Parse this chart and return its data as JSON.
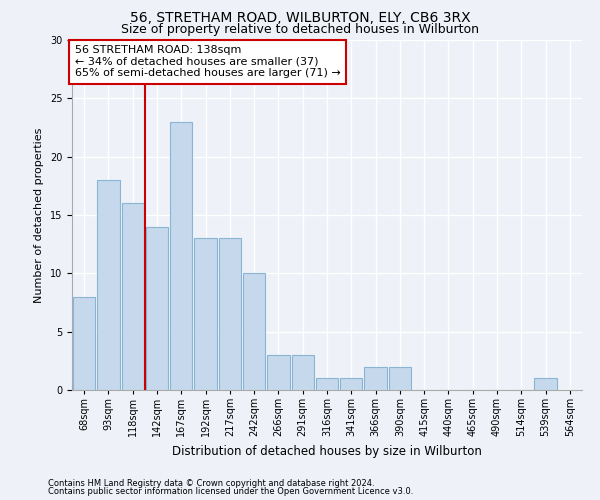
{
  "title1": "56, STRETHAM ROAD, WILBURTON, ELY, CB6 3RX",
  "title2": "Size of property relative to detached houses in Wilburton",
  "xlabel": "Distribution of detached houses by size in Wilburton",
  "ylabel": "Number of detached properties",
  "footer1": "Contains HM Land Registry data © Crown copyright and database right 2024.",
  "footer2": "Contains public sector information licensed under the Open Government Licence v3.0.",
  "annotation_line1": "56 STRETHAM ROAD: 138sqm",
  "annotation_line2": "← 34% of detached houses are smaller (37)",
  "annotation_line3": "65% of semi-detached houses are larger (71) →",
  "bar_values": [
    8,
    18,
    16,
    14,
    23,
    13,
    13,
    10,
    3,
    3,
    1,
    1,
    2,
    2,
    0,
    0,
    0,
    0,
    0,
    1
  ],
  "categories": [
    "68sqm",
    "93sqm",
    "118sqm",
    "142sqm",
    "167sqm",
    "192sqm",
    "217sqm",
    "242sqm",
    "266sqm",
    "291sqm",
    "316sqm",
    "341sqm",
    "366sqm",
    "390sqm",
    "415sqm",
    "440sqm",
    "465sqm",
    "490sqm",
    "514sqm",
    "539sqm",
    "564sqm"
  ],
  "bar_color": "#c6d9ec",
  "bar_edge_color": "#89b4d4",
  "vline_color": "#cc0000",
  "vline_x": 2.5,
  "ylim": [
    0,
    30
  ],
  "yticks": [
    0,
    5,
    10,
    15,
    20,
    25,
    30
  ],
  "annotation_box_color": "white",
  "annotation_box_edge": "#cc0000",
  "bg_color": "#eef2f8",
  "grid_color": "white",
  "title1_fontsize": 10,
  "title2_fontsize": 9,
  "annot_fontsize": 8,
  "xlabel_fontsize": 8.5,
  "ylabel_fontsize": 8,
  "footer_fontsize": 6,
  "tick_fontsize": 7
}
